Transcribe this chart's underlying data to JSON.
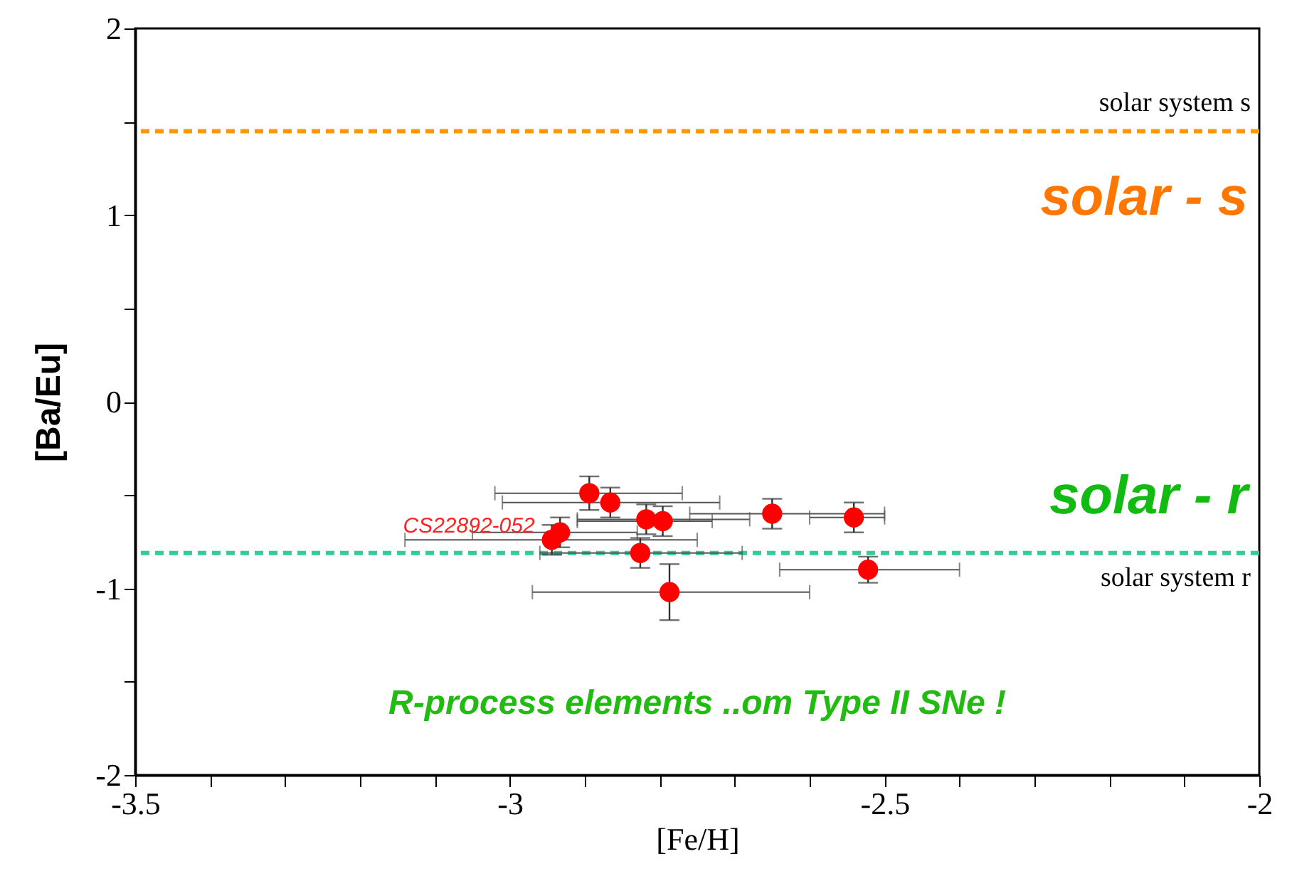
{
  "chart_data": {
    "type": "scatter",
    "xlabel": "[Fe/H]",
    "ylabel": "[Ba/Eu]",
    "x": [
      -2.894,
      -2.866,
      -2.818,
      -2.796,
      -2.65,
      -2.541,
      -2.944,
      -2.933,
      -2.826,
      -2.522,
      -2.787
    ],
    "series": [
      {
        "color": "#ff0000",
        "values": [
          -0.49,
          -0.54,
          -0.63,
          -0.64,
          -0.6,
          -0.62,
          -0.74,
          -0.7,
          -0.81,
          -0.9,
          -1.02
        ],
        "errors": [
          0.09,
          0.08,
          0.08,
          0.08,
          0.08,
          0.08,
          0.08,
          0.08,
          0.08,
          0.07,
          0.15
        ],
        "xerrors": [
          [
            -3.02,
            -2.77
          ],
          [
            -3.01,
            -2.72
          ],
          [
            -2.91,
            -2.68
          ],
          [
            -2.91,
            -2.73
          ],
          [
            -2.76,
            -2.5
          ],
          [
            -2.6,
            -2.5
          ],
          [
            -3.14,
            -2.75
          ],
          [
            -3.05,
            -2.83
          ],
          [
            -2.96,
            -2.69
          ],
          [
            -2.64,
            -2.4
          ],
          [
            -2.97,
            -2.6
          ]
        ]
      }
    ],
    "marker": "circle",
    "grid": false,
    "xlim": [
      -3.5,
      -2
    ],
    "ylim": [
      -2,
      2
    ],
    "xticks": [
      -3.5,
      {
        "value": -3.4,
        "label": null
      },
      {
        "value": -3.3,
        "label": null
      },
      {
        "value": -3.2,
        "label": null
      },
      {
        "value": -3.1,
        "label": null
      },
      -3,
      {
        "value": -2.9,
        "label": null
      },
      {
        "value": -2.8,
        "label": null
      },
      {
        "value": -2.7,
        "label": null
      },
      {
        "value": -2.6,
        "label": null
      },
      -2.5,
      {
        "value": -2.4,
        "label": null
      },
      {
        "value": -2.3,
        "label": null
      },
      {
        "value": -2.2,
        "label": null
      },
      {
        "value": -2.1,
        "label": null
      },
      -2
    ],
    "yticks": [
      -2,
      {
        "value": -1.5,
        "label": null
      },
      -1,
      {
        "value": -0.5,
        "label": null
      },
      0,
      {
        "value": 0.5,
        "label": null
      },
      1,
      {
        "value": 1.5,
        "label": null
      },
      2
    ],
    "ref_lines": [
      {
        "axis": "y",
        "value": 1.45,
        "label": "solar system s",
        "color": "#ff9900",
        "line_style": "dashed"
      },
      {
        "axis": "y",
        "value": -0.81,
        "label": "solar system r",
        "color": "#33cc99",
        "line_style": "dashed"
      }
    ],
    "annotations": [
      {
        "text": "CS22892-052",
        "x": -2.944,
        "y": -0.74
      },
      "solar - s",
      "solar - r",
      "R-process elements ..om Type II SNe !"
    ]
  }
}
